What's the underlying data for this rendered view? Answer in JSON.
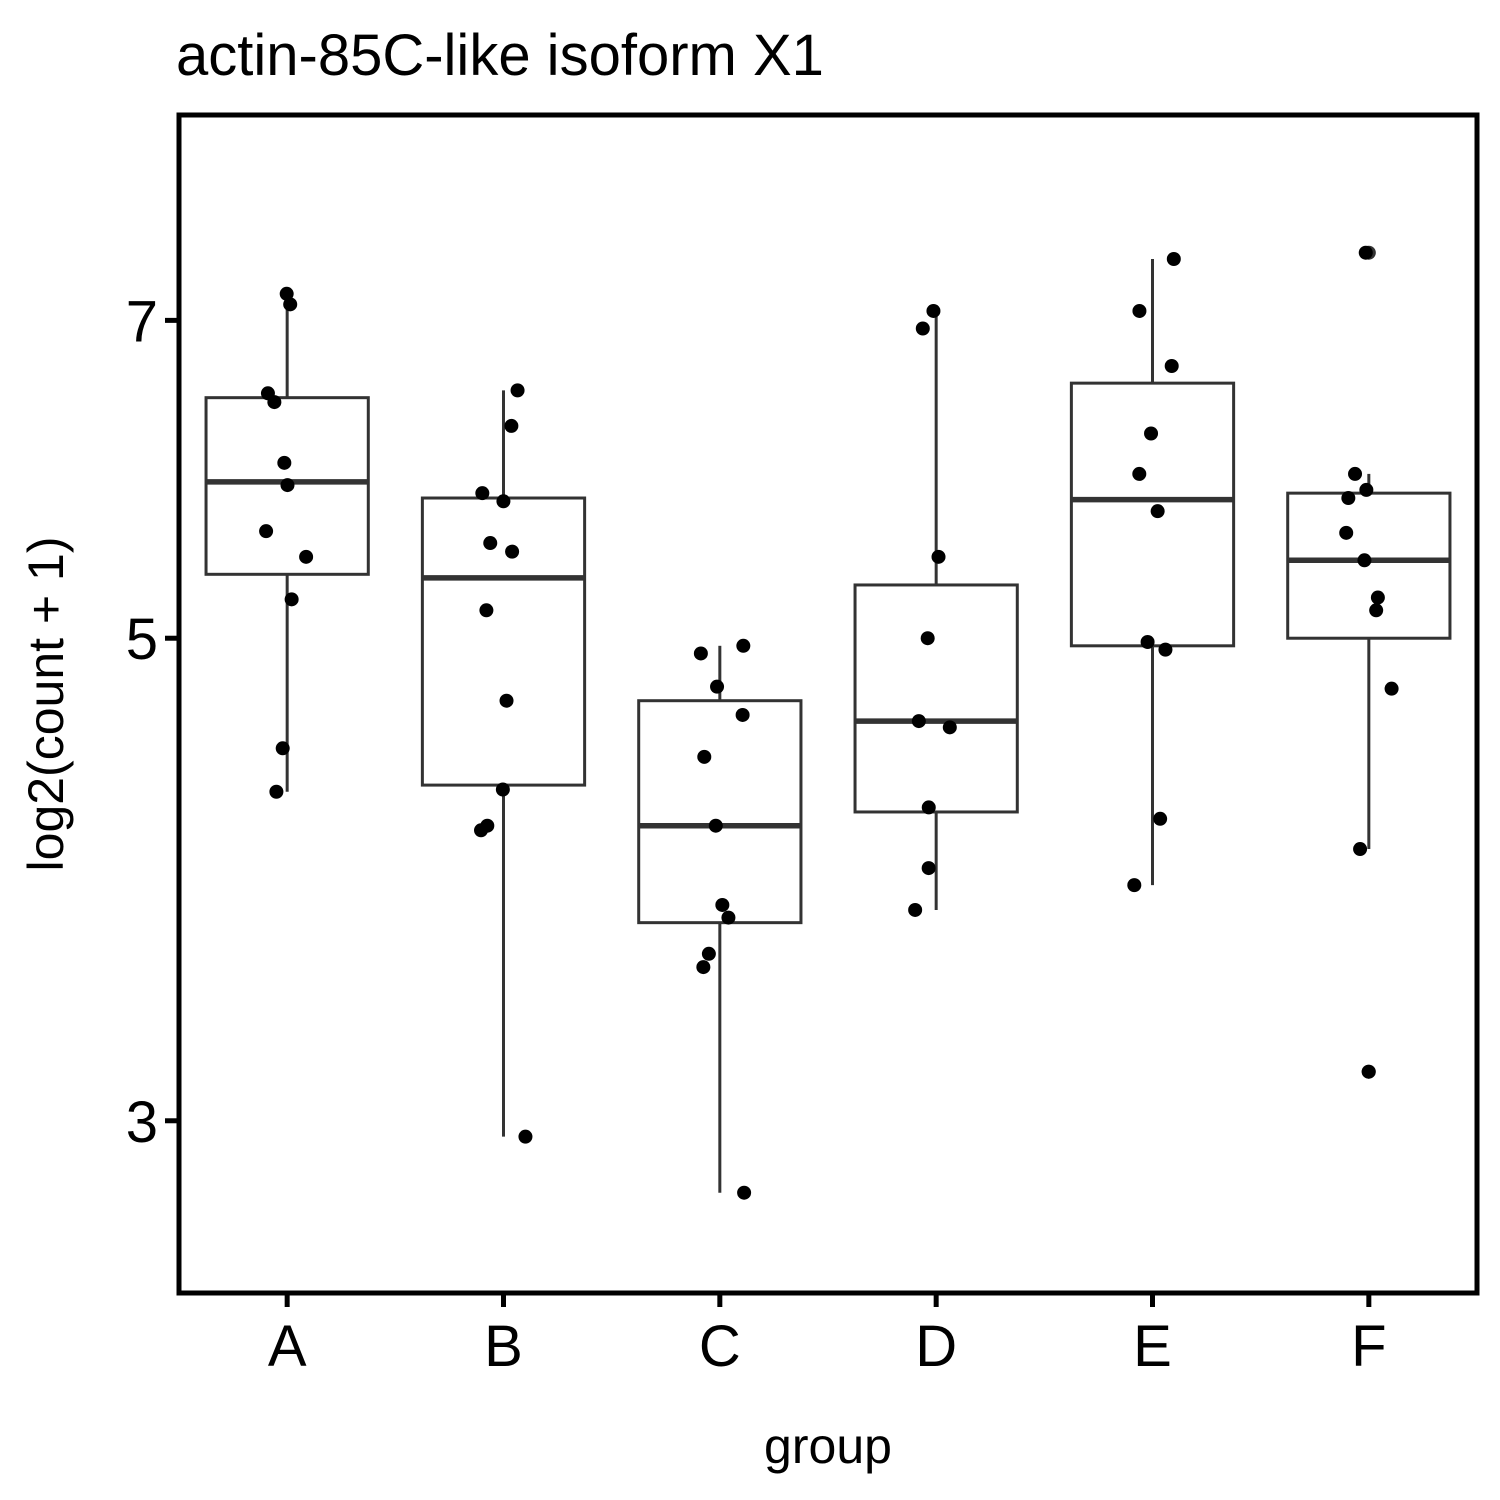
{
  "chart_data": {
    "type": "box",
    "title": "actin-85C-like isoform X1",
    "xlabel": "group",
    "ylabel": "log2(count + 1)",
    "scale": "log2",
    "yticks": [
      3,
      5,
      7
    ],
    "ylim": [
      2.5,
      8.7
    ],
    "grid": false,
    "legend": "none",
    "colors": {
      "box_line": "#333333",
      "point": "#000000",
      "outlier": "#333333",
      "frame": "#000000"
    },
    "groups": [
      {
        "name": "A",
        "box": {
          "whisker_low": 4.25,
          "q1": 5.35,
          "median": 5.9,
          "q3": 6.45,
          "whisker_high": 7.2
        },
        "points": [
          7.2,
          7.12,
          6.48,
          6.42,
          6.02,
          5.88,
          5.6,
          5.45,
          5.21,
          4.45,
          4.25
        ],
        "outliers": []
      },
      {
        "name": "B",
        "box": {
          "whisker_low": 2.95,
          "q1": 4.28,
          "median": 5.33,
          "q3": 5.8,
          "whisker_high": 6.5
        },
        "points": [
          6.5,
          6.26,
          5.83,
          5.78,
          5.53,
          5.48,
          5.15,
          4.68,
          4.26,
          4.1,
          4.08,
          2.95
        ],
        "outliers": []
      },
      {
        "name": "C",
        "box": {
          "whisker_low": 2.78,
          "q1": 3.7,
          "median": 4.1,
          "q3": 4.68,
          "whisker_high": 4.96
        },
        "points": [
          4.96,
          4.92,
          4.75,
          4.61,
          4.41,
          4.1,
          3.77,
          3.72,
          3.58,
          3.53,
          2.78
        ],
        "outliers": []
      },
      {
        "name": "D",
        "box": {
          "whisker_low": 3.75,
          "q1": 4.16,
          "median": 4.58,
          "q3": 5.29,
          "whisker_high": 7.07
        },
        "points": [
          7.07,
          6.94,
          5.45,
          5.0,
          4.58,
          4.55,
          4.18,
          3.92,
          3.75
        ],
        "outliers": []
      },
      {
        "name": "E",
        "box": {
          "whisker_low": 3.85,
          "q1": 4.96,
          "median": 5.79,
          "q3": 6.55,
          "whisker_high": 7.47
        },
        "points": [
          7.47,
          7.07,
          6.67,
          6.21,
          5.95,
          5.72,
          4.98,
          4.94,
          4.13,
          3.85
        ],
        "outliers": []
      },
      {
        "name": "F",
        "box": {
          "whisker_low": 4.0,
          "q1": 5.0,
          "median": 5.43,
          "q3": 5.83,
          "whisker_high": 5.95
        },
        "points": [
          5.95,
          5.85,
          5.8,
          5.59,
          5.43,
          5.22,
          5.15,
          4.74,
          4.0,
          7.52,
          3.16
        ],
        "outliers": [
          7.52,
          3.16
        ]
      }
    ]
  }
}
